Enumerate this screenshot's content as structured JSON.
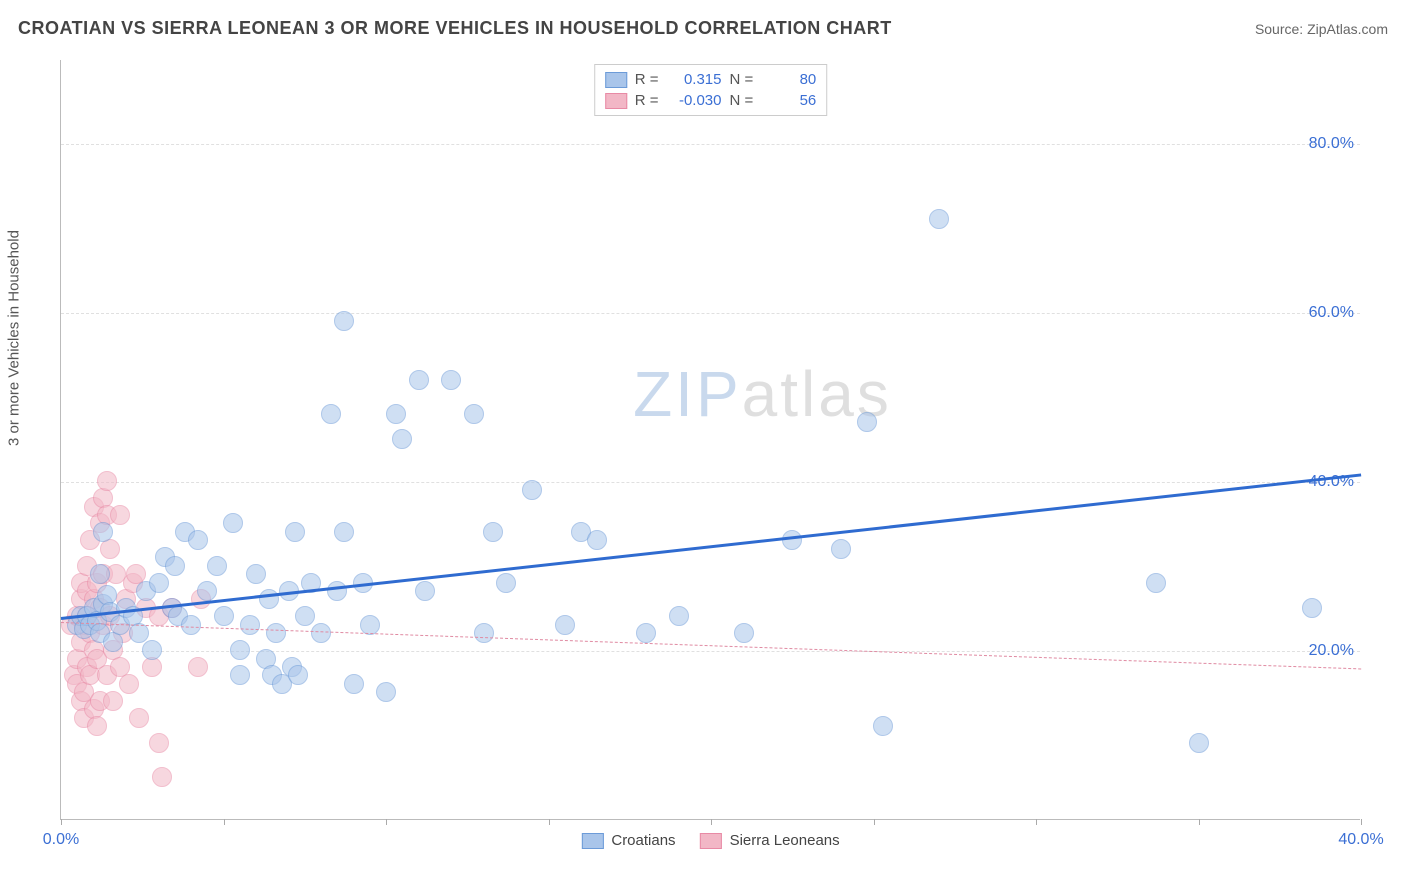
{
  "title": "CROATIAN VS SIERRA LEONEAN 3 OR MORE VEHICLES IN HOUSEHOLD CORRELATION CHART",
  "source_label": "Source: ",
  "source_name": "ZipAtlas.com",
  "ylabel": "3 or more Vehicles in Household",
  "watermark": {
    "part1": "ZIP",
    "part2": "atlas"
  },
  "chart": {
    "type": "scatter",
    "xlim": [
      0,
      40
    ],
    "ylim": [
      0,
      90
    ],
    "y_ticks": [
      20,
      40,
      60,
      80
    ],
    "y_tick_labels": [
      "20.0%",
      "40.0%",
      "60.0%",
      "80.0%"
    ],
    "x_ticks": [
      0,
      5,
      10,
      15,
      20,
      25,
      30,
      35,
      40
    ],
    "x_tick_labels_shown": {
      "0": "0.0%",
      "40": "40.0%"
    },
    "background_color": "#ffffff",
    "grid_color": "#e0e0e0",
    "axis_color": "#bbbbbb",
    "tick_label_color": "#3b6fd4",
    "tick_label_fontsize": 16,
    "title_fontsize": 18,
    "ylabel_fontsize": 15,
    "marker_radius": 10,
    "marker_opacity": 0.55,
    "series": [
      {
        "name": "Croatians",
        "fill": "#a9c5ea",
        "stroke": "#6c9bd8",
        "trend_color": "#2f6bd0",
        "trend_width": 3,
        "trend_dash": "solid",
        "R": "0.315",
        "N": "80",
        "trend": {
          "x1": 0,
          "y1": 24,
          "x2": 40,
          "y2": 41
        },
        "points": [
          [
            0.5,
            23
          ],
          [
            0.6,
            24
          ],
          [
            0.7,
            22.5
          ],
          [
            0.8,
            24
          ],
          [
            0.9,
            23
          ],
          [
            1.0,
            25
          ],
          [
            1.1,
            23.5
          ],
          [
            1.2,
            22
          ],
          [
            1.3,
            25.5
          ],
          [
            1.4,
            26.5
          ],
          [
            1.5,
            24.5
          ],
          [
            1.6,
            21
          ],
          [
            1.8,
            23
          ],
          [
            1.2,
            29
          ],
          [
            1.3,
            34
          ],
          [
            2.0,
            25
          ],
          [
            2.2,
            24
          ],
          [
            2.4,
            22
          ],
          [
            2.6,
            27
          ],
          [
            2.8,
            20
          ],
          [
            3.0,
            28
          ],
          [
            3.2,
            31
          ],
          [
            3.4,
            25
          ],
          [
            3.5,
            30
          ],
          [
            3.6,
            24
          ],
          [
            3.8,
            34
          ],
          [
            4.0,
            23
          ],
          [
            4.2,
            33
          ],
          [
            4.5,
            27
          ],
          [
            4.8,
            30
          ],
          [
            5.0,
            24
          ],
          [
            5.3,
            35
          ],
          [
            5.5,
            20
          ],
          [
            5.8,
            23
          ],
          [
            6.0,
            29
          ],
          [
            5.5,
            17
          ],
          [
            6.3,
            19
          ],
          [
            6.4,
            26
          ],
          [
            6.5,
            17
          ],
          [
            6.6,
            22
          ],
          [
            6.8,
            16
          ],
          [
            7.0,
            27
          ],
          [
            7.1,
            18
          ],
          [
            7.2,
            34
          ],
          [
            7.3,
            17
          ],
          [
            7.5,
            24
          ],
          [
            7.7,
            28
          ],
          [
            8.0,
            22
          ],
          [
            8.3,
            48
          ],
          [
            8.5,
            27
          ],
          [
            8.7,
            34
          ],
          [
            8.7,
            59
          ],
          [
            9.0,
            16
          ],
          [
            9.3,
            28
          ],
          [
            9.5,
            23
          ],
          [
            10.0,
            15
          ],
          [
            10.3,
            48
          ],
          [
            10.5,
            45
          ],
          [
            11.0,
            52
          ],
          [
            11.2,
            27
          ],
          [
            12.0,
            52
          ],
          [
            12.7,
            48
          ],
          [
            13.0,
            22
          ],
          [
            13.3,
            34
          ],
          [
            13.7,
            28
          ],
          [
            14.5,
            39
          ],
          [
            15.5,
            23
          ],
          [
            16.0,
            34
          ],
          [
            16.5,
            33
          ],
          [
            18.0,
            22
          ],
          [
            19.0,
            24
          ],
          [
            21.0,
            22
          ],
          [
            22.5,
            33
          ],
          [
            24.0,
            32
          ],
          [
            24.8,
            47
          ],
          [
            25.3,
            11
          ],
          [
            27.0,
            71
          ],
          [
            33.7,
            28
          ],
          [
            35.0,
            9
          ],
          [
            38.5,
            25
          ]
        ]
      },
      {
        "name": "Sierra Leoneans",
        "fill": "#f2b7c6",
        "stroke": "#e88aa5",
        "trend_color": "#e08aa2",
        "trend_width": 1.5,
        "trend_dash": "dashed",
        "R": "-0.030",
        "N": "56",
        "trend": {
          "x1": 0,
          "y1": 23.5,
          "x2": 40,
          "y2": 18
        },
        "points": [
          [
            0.3,
            23
          ],
          [
            0.4,
            17
          ],
          [
            0.5,
            16
          ],
          [
            0.5,
            19
          ],
          [
            0.5,
            24
          ],
          [
            0.6,
            14
          ],
          [
            0.6,
            26
          ],
          [
            0.6,
            28
          ],
          [
            0.6,
            21
          ],
          [
            0.7,
            23
          ],
          [
            0.7,
            12
          ],
          [
            0.7,
            15
          ],
          [
            0.8,
            24
          ],
          [
            0.8,
            27
          ],
          [
            0.8,
            30
          ],
          [
            0.8,
            18
          ],
          [
            0.9,
            17
          ],
          [
            0.9,
            22
          ],
          [
            0.9,
            33
          ],
          [
            1.0,
            26
          ],
          [
            1.0,
            37
          ],
          [
            1.0,
            13
          ],
          [
            1.0,
            20
          ],
          [
            1.1,
            28
          ],
          [
            1.1,
            19
          ],
          [
            1.1,
            11
          ],
          [
            1.2,
            25
          ],
          [
            1.2,
            14
          ],
          [
            1.2,
            35
          ],
          [
            1.3,
            38
          ],
          [
            1.3,
            23
          ],
          [
            1.3,
            29
          ],
          [
            1.4,
            40
          ],
          [
            1.4,
            17
          ],
          [
            1.4,
            36
          ],
          [
            1.5,
            24
          ],
          [
            1.5,
            32
          ],
          [
            1.6,
            20
          ],
          [
            1.6,
            14
          ],
          [
            1.7,
            29
          ],
          [
            1.8,
            18
          ],
          [
            1.8,
            36
          ],
          [
            1.9,
            22
          ],
          [
            2.0,
            26
          ],
          [
            2.1,
            16
          ],
          [
            2.2,
            28
          ],
          [
            2.3,
            29
          ],
          [
            2.4,
            12
          ],
          [
            2.6,
            25
          ],
          [
            2.8,
            18
          ],
          [
            3.0,
            24
          ],
          [
            3.0,
            9
          ],
          [
            3.4,
            25
          ],
          [
            3.1,
            5
          ],
          [
            4.2,
            18
          ],
          [
            4.3,
            26
          ]
        ]
      }
    ]
  },
  "legend_top": {
    "r_label": "R =",
    "n_label": "N ="
  },
  "legend_bottom": [
    "Croatians",
    "Sierra Leoneans"
  ]
}
